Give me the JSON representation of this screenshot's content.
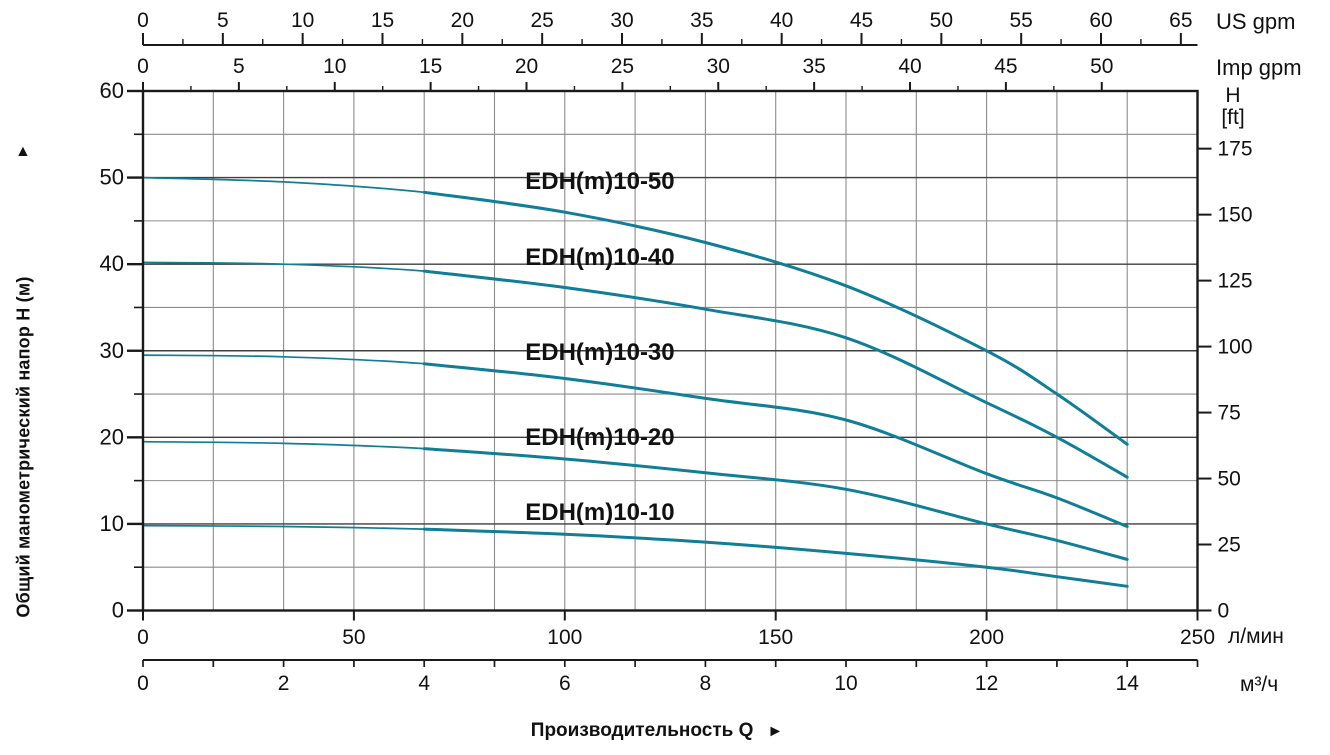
{
  "chart_data": {
    "type": "line",
    "axes": {
      "top_us": {
        "unit": "US gpm",
        "major_ticks": [
          0,
          5,
          10,
          15,
          20,
          25,
          30,
          35,
          40,
          45,
          50,
          55,
          60,
          65
        ],
        "minor_step": 2.5,
        "lmin_per_unit": 3.7854
      },
      "top_imp": {
        "unit": "Imp gpm",
        "major_ticks": [
          0,
          5,
          10,
          15,
          20,
          25,
          30,
          35,
          40,
          45,
          50
        ],
        "minor_step": 2.5,
        "lmin_per_unit": 4.5461
      },
      "left_m": {
        "title": "Общий манометрический напор H (м)",
        "arrow": "▲",
        "major_ticks": [
          0,
          10,
          20,
          30,
          40,
          50,
          60
        ],
        "minor_step": 5,
        "range": [
          0,
          60
        ]
      },
      "right_ft": {
        "unit_line1": "H",
        "unit_line2": "[ft]",
        "major_ticks": [
          0,
          25,
          50,
          75,
          100,
          125,
          150,
          175
        ],
        "m_per_unit": 0.3048
      },
      "bottom_lmin": {
        "unit": "л/мин",
        "major_ticks": [
          0,
          50,
          100,
          150,
          200,
          250
        ],
        "range": [
          0,
          250
        ]
      },
      "bottom_m3h": {
        "unit": "м³/ч",
        "labeled_ticks": [
          0,
          2,
          4,
          6,
          8,
          10,
          12,
          14
        ],
        "tick_step": 1,
        "range": [
          0,
          15
        ]
      }
    },
    "bottom_title": "Производительность Q",
    "bottom_title_arrow": "►",
    "grid": {
      "vertical_step_m3h": 1,
      "horizontal_step_m": 5
    },
    "series": [
      {
        "name": "EDH(m)10-50",
        "points": [
          [
            0,
            50.0
          ],
          [
            2,
            49.5
          ],
          [
            4,
            48.3
          ],
          [
            6,
            46.0
          ],
          [
            8,
            42.5
          ],
          [
            10,
            37.5
          ],
          [
            12,
            30.0
          ],
          [
            13,
            25.0
          ],
          [
            14,
            19.2
          ]
        ],
        "label_at": [
          6.5,
          49.6
        ]
      },
      {
        "name": "EDH(m)10-40",
        "points": [
          [
            0,
            40.2
          ],
          [
            2,
            40.0
          ],
          [
            4,
            39.2
          ],
          [
            6,
            37.3
          ],
          [
            8,
            34.8
          ],
          [
            10,
            31.5
          ],
          [
            12,
            24.0
          ],
          [
            13,
            20.0
          ],
          [
            14,
            15.4
          ]
        ],
        "label_at": [
          6.5,
          40.85
        ]
      },
      {
        "name": "EDH(m)10-30",
        "points": [
          [
            0,
            29.5
          ],
          [
            2,
            29.3
          ],
          [
            4,
            28.5
          ],
          [
            6,
            26.8
          ],
          [
            8,
            24.5
          ],
          [
            10,
            22.0
          ],
          [
            12,
            15.8
          ],
          [
            13,
            13.0
          ],
          [
            14,
            9.7
          ]
        ],
        "label_at": [
          6.5,
          29.87
        ]
      },
      {
        "name": "EDH(m)10-20",
        "points": [
          [
            0,
            19.5
          ],
          [
            2,
            19.3
          ],
          [
            4,
            18.7
          ],
          [
            6,
            17.5
          ],
          [
            8,
            15.9
          ],
          [
            10,
            14.0
          ],
          [
            12,
            10.0
          ],
          [
            13,
            8.1
          ],
          [
            14,
            5.9
          ]
        ],
        "label_at": [
          6.5,
          20.05
        ]
      },
      {
        "name": "EDH(m)10-10",
        "points": [
          [
            0,
            9.8
          ],
          [
            2,
            9.7
          ],
          [
            4,
            9.4
          ],
          [
            6,
            8.8
          ],
          [
            8,
            7.9
          ],
          [
            10,
            6.6
          ],
          [
            12,
            5.0
          ],
          [
            13,
            3.9
          ],
          [
            14,
            2.8
          ]
        ],
        "label_at": [
          6.5,
          11.38
        ]
      }
    ],
    "colors": {
      "curve": "#0f7e96",
      "grid_major": "#3f3f3f",
      "grid_minor": "#8c8c8c",
      "axis": "#1a1a1a"
    }
  }
}
